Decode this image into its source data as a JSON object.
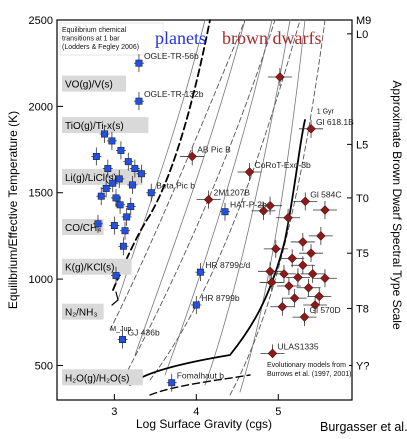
{
  "chart_data": {
    "type": "scatter",
    "title": "",
    "xlabel": "Log Surface Gravity (cgs)",
    "ylabel": "Equilibrium/Effective Temperature (K)",
    "y2label": "Approximate Brown Dwarf Spectral Type Scale",
    "xlim": [
      2.3,
      5.9
    ],
    "ylim": [
      300,
      2500
    ],
    "grid": false,
    "x_ticks": [
      3,
      4,
      5
    ],
    "y_ticks": [
      500,
      1000,
      1500,
      2000,
      2500
    ],
    "y2_ticks": [
      {
        "label": "M9",
        "y": 2500
      },
      {
        "label": "L0",
        "y": 2420
      },
      {
        "label": "L5",
        "y": 1780
      },
      {
        "label": "T0",
        "y": 1470
      },
      {
        "label": "T5",
        "y": 1150
      },
      {
        "label": "T8",
        "y": 830
      },
      {
        "label": "Y?",
        "y": 500
      }
    ],
    "headings": {
      "planets": "planets",
      "planets_color": "#2233dd",
      "brown_dwarfs": "brown dwarfs",
      "brown_dwarfs_color": "#a52a2a"
    },
    "chemistry_box_title": [
      "Equilibrium chemical",
      "transitions at 1 bar",
      "(Lodders & Fegley 2006)"
    ],
    "chemistry_labels": [
      {
        "text": "VO(g)/V(s)",
        "y": 2120
      },
      {
        "text": "TiO(g)/Ti-x(s)",
        "y": 1880
      },
      {
        "text": "Li(g)/LiCl(s)",
        "y": 1580
      },
      {
        "text": "CO/CH₄",
        "y": 1290
      },
      {
        "text": "K(g)/KCl(s)",
        "y": 1060
      },
      {
        "text": "N₂/NH₃",
        "y": 800
      },
      {
        "text": "H₂O(g)/H₂O(s)",
        "y": 420
      }
    ],
    "models_note": [
      "Evolutionary models from",
      "Burrows et al. (1997, 2001)"
    ],
    "series": [
      {
        "name": "planets",
        "color": "#2450e0",
        "points": [
          {
            "x": 3.3,
            "y": 2250,
            "label": "OGLE-TR-56b"
          },
          {
            "x": 3.3,
            "y": 2030,
            "label": "OGLE-TR-132b"
          },
          {
            "x": 3.45,
            "y": 1500,
            "label": "Beta Pic b"
          },
          {
            "x": 4.35,
            "y": 1390,
            "label": "HAT-P-2b"
          },
          {
            "x": 4.05,
            "y": 1040,
            "label": "HR 8799c/d"
          },
          {
            "x": 4.0,
            "y": 850,
            "label": "HR 8799b"
          },
          {
            "x": 3.1,
            "y": 650,
            "label": "GJ 436b"
          },
          {
            "x": 3.7,
            "y": 400,
            "label": "Fomalhaut b"
          },
          {
            "x": 2.88,
            "y": 1840,
            "label": ""
          },
          {
            "x": 2.97,
            "y": 1800,
            "label": ""
          },
          {
            "x": 2.78,
            "y": 1710,
            "label": ""
          },
          {
            "x": 3.08,
            "y": 1745,
            "label": ""
          },
          {
            "x": 3.17,
            "y": 1680,
            "label": ""
          },
          {
            "x": 2.92,
            "y": 1640,
            "label": ""
          },
          {
            "x": 3.25,
            "y": 1640,
            "label": ""
          },
          {
            "x": 3.33,
            "y": 1610,
            "label": ""
          },
          {
            "x": 3.06,
            "y": 1580,
            "label": ""
          },
          {
            "x": 2.98,
            "y": 1555,
            "label": ""
          },
          {
            "x": 3.22,
            "y": 1545,
            "label": ""
          },
          {
            "x": 2.9,
            "y": 1525,
            "label": ""
          },
          {
            "x": 3.02,
            "y": 1470,
            "label": ""
          },
          {
            "x": 2.84,
            "y": 1480,
            "label": ""
          },
          {
            "x": 3.07,
            "y": 1430,
            "label": ""
          },
          {
            "x": 3.2,
            "y": 1420,
            "label": ""
          },
          {
            "x": 3.15,
            "y": 1360,
            "label": ""
          },
          {
            "x": 2.8,
            "y": 1320,
            "label": ""
          },
          {
            "x": 3.0,
            "y": 1310,
            "label": ""
          },
          {
            "x": 3.13,
            "y": 1280,
            "label": ""
          },
          {
            "x": 3.11,
            "y": 1190,
            "label": ""
          },
          {
            "x": 3.02,
            "y": 1020,
            "label": ""
          }
        ]
      },
      {
        "name": "brown dwarfs",
        "color": "#8b1a1a",
        "points": [
          {
            "x": 5.4,
            "y": 1870,
            "label": "Gl 618.1B"
          },
          {
            "x": 3.95,
            "y": 1710,
            "label": "AB Pic B"
          },
          {
            "x": 4.65,
            "y": 1620,
            "label": "CoRoT-Exo-3b"
          },
          {
            "x": 4.15,
            "y": 1460,
            "label": "2M1207B"
          },
          {
            "x": 5.33,
            "y": 1450,
            "label": "Gl 584C"
          },
          {
            "x": 5.32,
            "y": 780,
            "label": "Gl 570D"
          },
          {
            "x": 4.93,
            "y": 570,
            "label": "ULAS1335"
          },
          {
            "x": 5.02,
            "y": 2170,
            "label": ""
          },
          {
            "x": 4.9,
            "y": 1425,
            "label": ""
          },
          {
            "x": 4.82,
            "y": 1395,
            "label": ""
          },
          {
            "x": 5.57,
            "y": 1400,
            "label": ""
          },
          {
            "x": 5.12,
            "y": 1355,
            "label": ""
          },
          {
            "x": 5.52,
            "y": 1250,
            "label": ""
          },
          {
            "x": 5.3,
            "y": 1215,
            "label": ""
          },
          {
            "x": 4.97,
            "y": 1175,
            "label": ""
          },
          {
            "x": 5.4,
            "y": 1150,
            "label": ""
          },
          {
            "x": 5.17,
            "y": 1120,
            "label": ""
          },
          {
            "x": 5.3,
            "y": 1080,
            "label": ""
          },
          {
            "x": 4.9,
            "y": 1045,
            "label": ""
          },
          {
            "x": 5.07,
            "y": 1030,
            "label": ""
          },
          {
            "x": 5.24,
            "y": 1010,
            "label": ""
          },
          {
            "x": 5.42,
            "y": 1030,
            "label": ""
          },
          {
            "x": 5.57,
            "y": 1005,
            "label": ""
          },
          {
            "x": 4.92,
            "y": 980,
            "label": ""
          },
          {
            "x": 5.13,
            "y": 960,
            "label": ""
          },
          {
            "x": 5.37,
            "y": 950,
            "label": ""
          },
          {
            "x": 5.2,
            "y": 890,
            "label": ""
          },
          {
            "x": 5.5,
            "y": 900,
            "label": ""
          },
          {
            "x": 5.05,
            "y": 840,
            "label": ""
          },
          {
            "x": 5.45,
            "y": 850,
            "label": ""
          }
        ]
      }
    ],
    "annotations": [
      {
        "text": "1 Gyr",
        "x": 5.47,
        "y": 1960
      },
      {
        "text": "M_Jup",
        "x": 2.95,
        "y": 700
      }
    ],
    "credit": "Burgasser et al."
  }
}
